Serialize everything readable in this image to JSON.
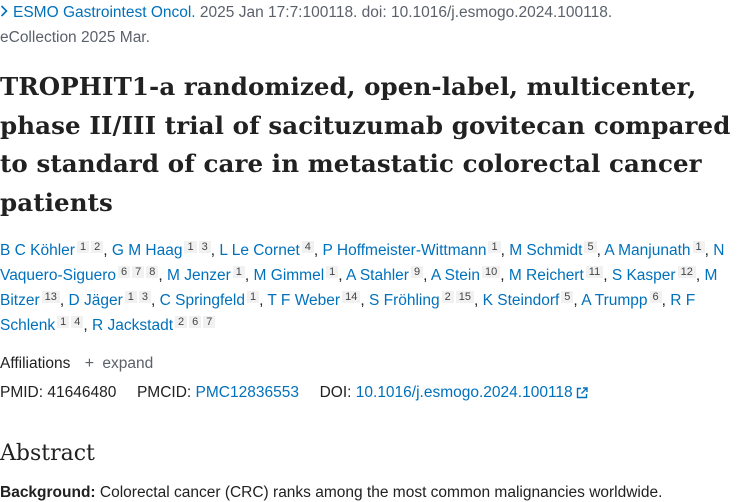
{
  "citation": {
    "chevron": ">",
    "journal": "ESMO Gastrointest Oncol.",
    "details": " 2025 Jan 17:7:100118. doi: 10.1016/j.esmogo.2024.100118.",
    "ecollection": "eCollection 2025 Mar."
  },
  "title": "TROPHIT1-a randomized, open-label, multicenter, phase II/III trial of sacituzumab govitecan compared to standard of care in metastatic colorectal cancer patients",
  "authors": [
    {
      "name": "B C Köhler",
      "affils": [
        "1",
        "2"
      ]
    },
    {
      "name": "G M Haag",
      "affils": [
        "1",
        "3"
      ]
    },
    {
      "name": "L Le Cornet",
      "affils": [
        "4"
      ]
    },
    {
      "name": "P Hoffmeister-Wittmann",
      "affils": [
        "1"
      ]
    },
    {
      "name": "M Schmidt",
      "affils": [
        "5"
      ]
    },
    {
      "name": "A Manjunath",
      "affils": [
        "1"
      ]
    },
    {
      "name": "N Vaquero-Siguero",
      "affils": [
        "6",
        "7",
        "8"
      ]
    },
    {
      "name": "M Jenzer",
      "affils": [
        "1"
      ]
    },
    {
      "name": "M Gimmel",
      "affils": [
        "1"
      ]
    },
    {
      "name": "A Stahler",
      "affils": [
        "9"
      ]
    },
    {
      "name": "A Stein",
      "affils": [
        "10"
      ]
    },
    {
      "name": "M Reichert",
      "affils": [
        "11"
      ]
    },
    {
      "name": "S Kasper",
      "affils": [
        "12"
      ]
    },
    {
      "name": "M Bitzer",
      "affils": [
        "13"
      ]
    },
    {
      "name": "D Jäger",
      "affils": [
        "1",
        "3"
      ]
    },
    {
      "name": "C Springfeld",
      "affils": [
        "1"
      ]
    },
    {
      "name": "T F Weber",
      "affils": [
        "14"
      ]
    },
    {
      "name": "S Fröhling",
      "affils": [
        "2",
        "15"
      ]
    },
    {
      "name": "K Steindorf",
      "affils": [
        "5"
      ]
    },
    {
      "name": "A Trumpp",
      "affils": [
        "6"
      ]
    },
    {
      "name": "R F Schlenk",
      "affils": [
        "1",
        "4"
      ]
    },
    {
      "name": "R Jackstadt",
      "affils": [
        "2",
        "6",
        "7"
      ]
    }
  ],
  "affiliations": {
    "label": "Affiliations",
    "plus": "+",
    "expand_label": "expand"
  },
  "identifiers": {
    "pmid_label": "PMID:",
    "pmid": "41646480",
    "pmcid_label": "PMCID:",
    "pmcid": "PMC12836553",
    "doi_label": "DOI:",
    "doi": "10.1016/j.esmogo.2024.100118"
  },
  "abstract": {
    "heading": "Abstract",
    "background_label": "Background:",
    "background_text": " Colorectal cancer (CRC) ranks among the most common malignancies worldwide."
  },
  "colors": {
    "link": "#0071bc",
    "text": "#212121",
    "muted": "#5b616b"
  }
}
